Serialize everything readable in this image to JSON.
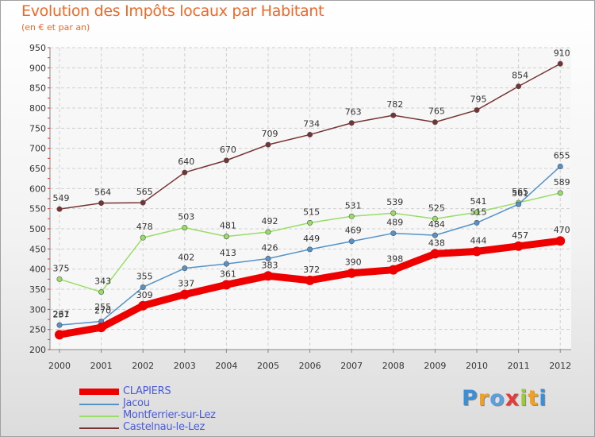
{
  "title": "Evolution des Impôts locaux par Habitant",
  "subtitle": "(en € et par an)",
  "logo": {
    "letters": [
      "P",
      "r",
      "o",
      "x",
      "i",
      "t",
      "i"
    ],
    "colors": [
      "#3b8fd6",
      "#f2a020",
      "#5aa0e0",
      "#e23c3c",
      "#9cc83c",
      "#f2a020",
      "#3b8fd6"
    ]
  },
  "chart_data": {
    "type": "line",
    "title": "Evolution des Impôts locaux par Habitant",
    "subtitle": "(en € et par an)",
    "xlabel": "",
    "ylabel": "",
    "ylim": [
      200,
      950
    ],
    "yticks": [
      200,
      250,
      300,
      350,
      400,
      450,
      500,
      550,
      600,
      650,
      700,
      750,
      800,
      850,
      900,
      950
    ],
    "x": [
      "2000",
      "2001",
      "2002",
      "2003",
      "2004",
      "2005",
      "2006",
      "2007",
      "2008",
      "2009",
      "2010",
      "2011",
      "2012"
    ],
    "series": [
      {
        "name": "CLAPIERS",
        "color": "#ee0000",
        "values": [
          237,
          255,
          309,
          337,
          361,
          383,
          372,
          390,
          398,
          438,
          444,
          457,
          470
        ]
      },
      {
        "name": "Jacou",
        "color": "#5592c8",
        "values": [
          261,
          270,
          355,
          402,
          413,
          426,
          449,
          469,
          489,
          484,
          515,
          561,
          655
        ]
      },
      {
        "name": "Montferrier-sur-Lez",
        "color": "#99dd66",
        "values": [
          375,
          343,
          478,
          503,
          481,
          492,
          515,
          531,
          539,
          525,
          541,
          565,
          589
        ]
      },
      {
        "name": "Castelnau-le-Lez",
        "color": "#773333",
        "values": [
          549,
          564,
          565,
          640,
          670,
          709,
          734,
          763,
          782,
          765,
          795,
          854,
          910
        ]
      }
    ]
  }
}
